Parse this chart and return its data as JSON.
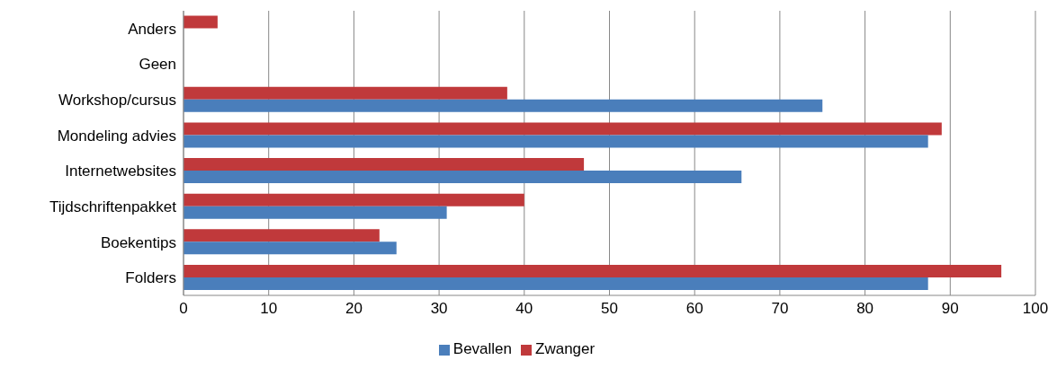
{
  "chart_data": {
    "type": "bar",
    "orientation": "horizontal",
    "categories": [
      "Anders",
      "Geen",
      "Workshop/cursus",
      "Mondeling advies",
      "Internetwebsites",
      "Tijdschriftenpakket",
      "Boekentips",
      "Folders"
    ],
    "series": [
      {
        "name": "Zwanger",
        "color": "#c0393b",
        "values": [
          4,
          0,
          38,
          89,
          47,
          40,
          23,
          96
        ]
      },
      {
        "name": "Bevallen",
        "color": "#4a7ebb",
        "values": [
          0,
          0,
          75,
          87.4,
          65.5,
          30.9,
          25,
          87.4
        ]
      }
    ],
    "xlim": [
      0,
      100
    ],
    "xticks": [
      0,
      10,
      20,
      30,
      40,
      50,
      60,
      70,
      80,
      90,
      100
    ],
    "grid": "x",
    "legend": "bottom"
  }
}
